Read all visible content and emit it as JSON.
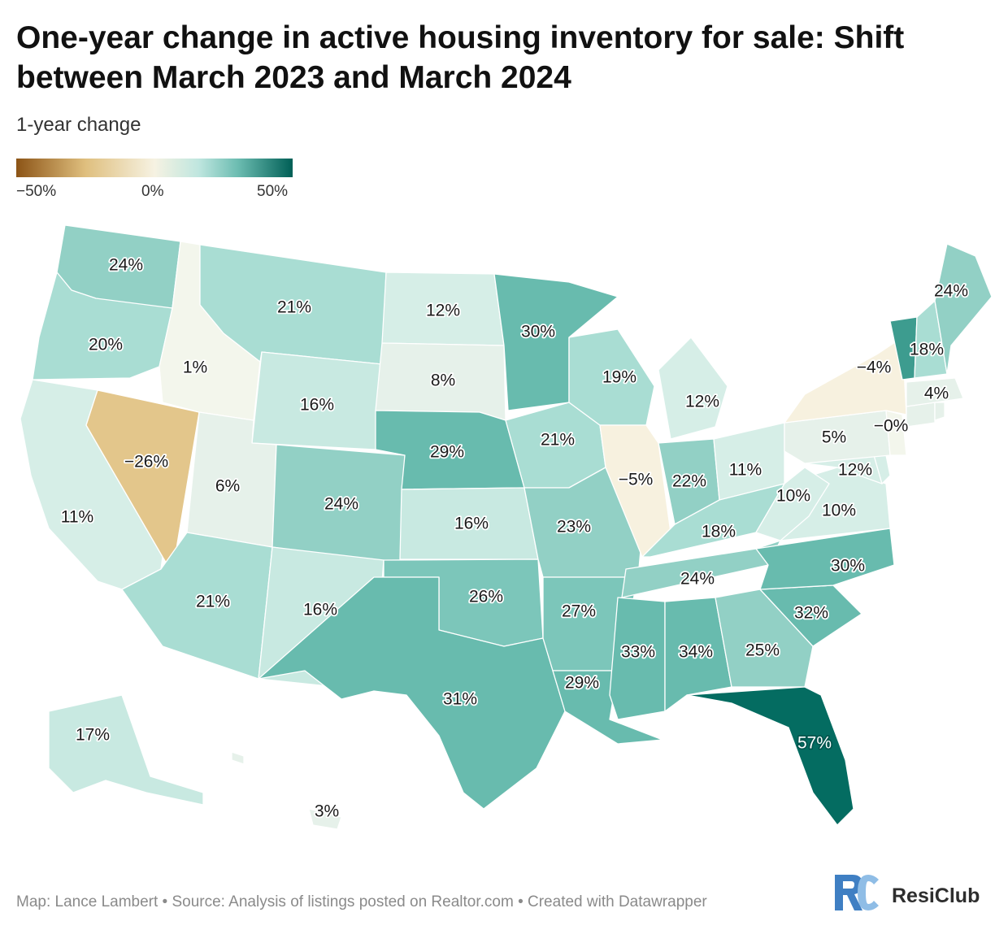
{
  "title": "One-year change in active housing inventory for sale: Shift between March 2023 and March 2024",
  "legend": {
    "title": "1-year change",
    "min_label": "−50%",
    "mid_label": "0%",
    "max_label": "50%",
    "colors": {
      "negative": "#8c5416",
      "neutral": "#f6f2e2",
      "positive": "#005f56"
    }
  },
  "states": [
    {
      "code": "WA",
      "label": "24%",
      "value": 24
    },
    {
      "code": "OR",
      "label": "20%",
      "value": 20
    },
    {
      "code": "CA",
      "label": "11%",
      "value": 11
    },
    {
      "code": "NV",
      "label": "−26%",
      "value": -26
    },
    {
      "code": "ID",
      "label": "1%",
      "value": 1
    },
    {
      "code": "MT",
      "label": "21%",
      "value": 21
    },
    {
      "code": "WY",
      "label": "16%",
      "value": 16
    },
    {
      "code": "UT",
      "label": "6%",
      "value": 6
    },
    {
      "code": "AZ",
      "label": "21%",
      "value": 21
    },
    {
      "code": "CO",
      "label": "24%",
      "value": 24
    },
    {
      "code": "NM",
      "label": "16%",
      "value": 16
    },
    {
      "code": "ND",
      "label": "12%",
      "value": 12
    },
    {
      "code": "SD",
      "label": "8%",
      "value": 8
    },
    {
      "code": "NE",
      "label": "29%",
      "value": 29
    },
    {
      "code": "KS",
      "label": "16%",
      "value": 16
    },
    {
      "code": "OK",
      "label": "26%",
      "value": 26
    },
    {
      "code": "TX",
      "label": "31%",
      "value": 31
    },
    {
      "code": "MN",
      "label": "30%",
      "value": 30
    },
    {
      "code": "IA",
      "label": "21%",
      "value": 21
    },
    {
      "code": "MO",
      "label": "23%",
      "value": 23
    },
    {
      "code": "AR",
      "label": "27%",
      "value": 27
    },
    {
      "code": "LA",
      "label": "29%",
      "value": 29
    },
    {
      "code": "WI",
      "label": "19%",
      "value": 19
    },
    {
      "code": "IL",
      "label": "−5%",
      "value": -5
    },
    {
      "code": "MI",
      "label": "12%",
      "value": 12
    },
    {
      "code": "IN",
      "label": "22%",
      "value": 22
    },
    {
      "code": "OH",
      "label": "11%",
      "value": 11
    },
    {
      "code": "KY",
      "label": "18%",
      "value": 18
    },
    {
      "code": "TN",
      "label": "24%",
      "value": 24
    },
    {
      "code": "MS",
      "label": "33%",
      "value": 33
    },
    {
      "code": "AL",
      "label": "34%",
      "value": 34
    },
    {
      "code": "GA",
      "label": "25%",
      "value": 25
    },
    {
      "code": "FL",
      "label": "57%",
      "value": 57
    },
    {
      "code": "SC",
      "label": "32%",
      "value": 32
    },
    {
      "code": "NC",
      "label": "30%",
      "value": 30
    },
    {
      "code": "VA",
      "label": "10%",
      "value": 10
    },
    {
      "code": "WV",
      "label": "10%",
      "value": 10
    },
    {
      "code": "MD",
      "label": "12%",
      "value": 12
    },
    {
      "code": "DE",
      "label": "",
      "value": 12
    },
    {
      "code": "PA",
      "label": "5%",
      "value": 5
    },
    {
      "code": "NJ",
      "label": "−0%",
      "value": 0
    },
    {
      "code": "NY",
      "label": "−4%",
      "value": -4
    },
    {
      "code": "CT",
      "label": "",
      "value": 4
    },
    {
      "code": "RI",
      "label": "",
      "value": 4
    },
    {
      "code": "MA",
      "label": "4%",
      "value": 4
    },
    {
      "code": "VT",
      "label": "",
      "value": 40
    },
    {
      "code": "NH",
      "label": "18%",
      "value": 18
    },
    {
      "code": "ME",
      "label": "24%",
      "value": 24
    },
    {
      "code": "AK",
      "label": "17%",
      "value": 17
    },
    {
      "code": "HI",
      "label": "3%",
      "value": 3
    }
  ],
  "footer": "Map: Lance Lambert • Source: Analysis of listings posted on Realtor.com • Created with Datawrapper",
  "logo": {
    "text": "ResiClub",
    "mark_letters": "RC"
  }
}
